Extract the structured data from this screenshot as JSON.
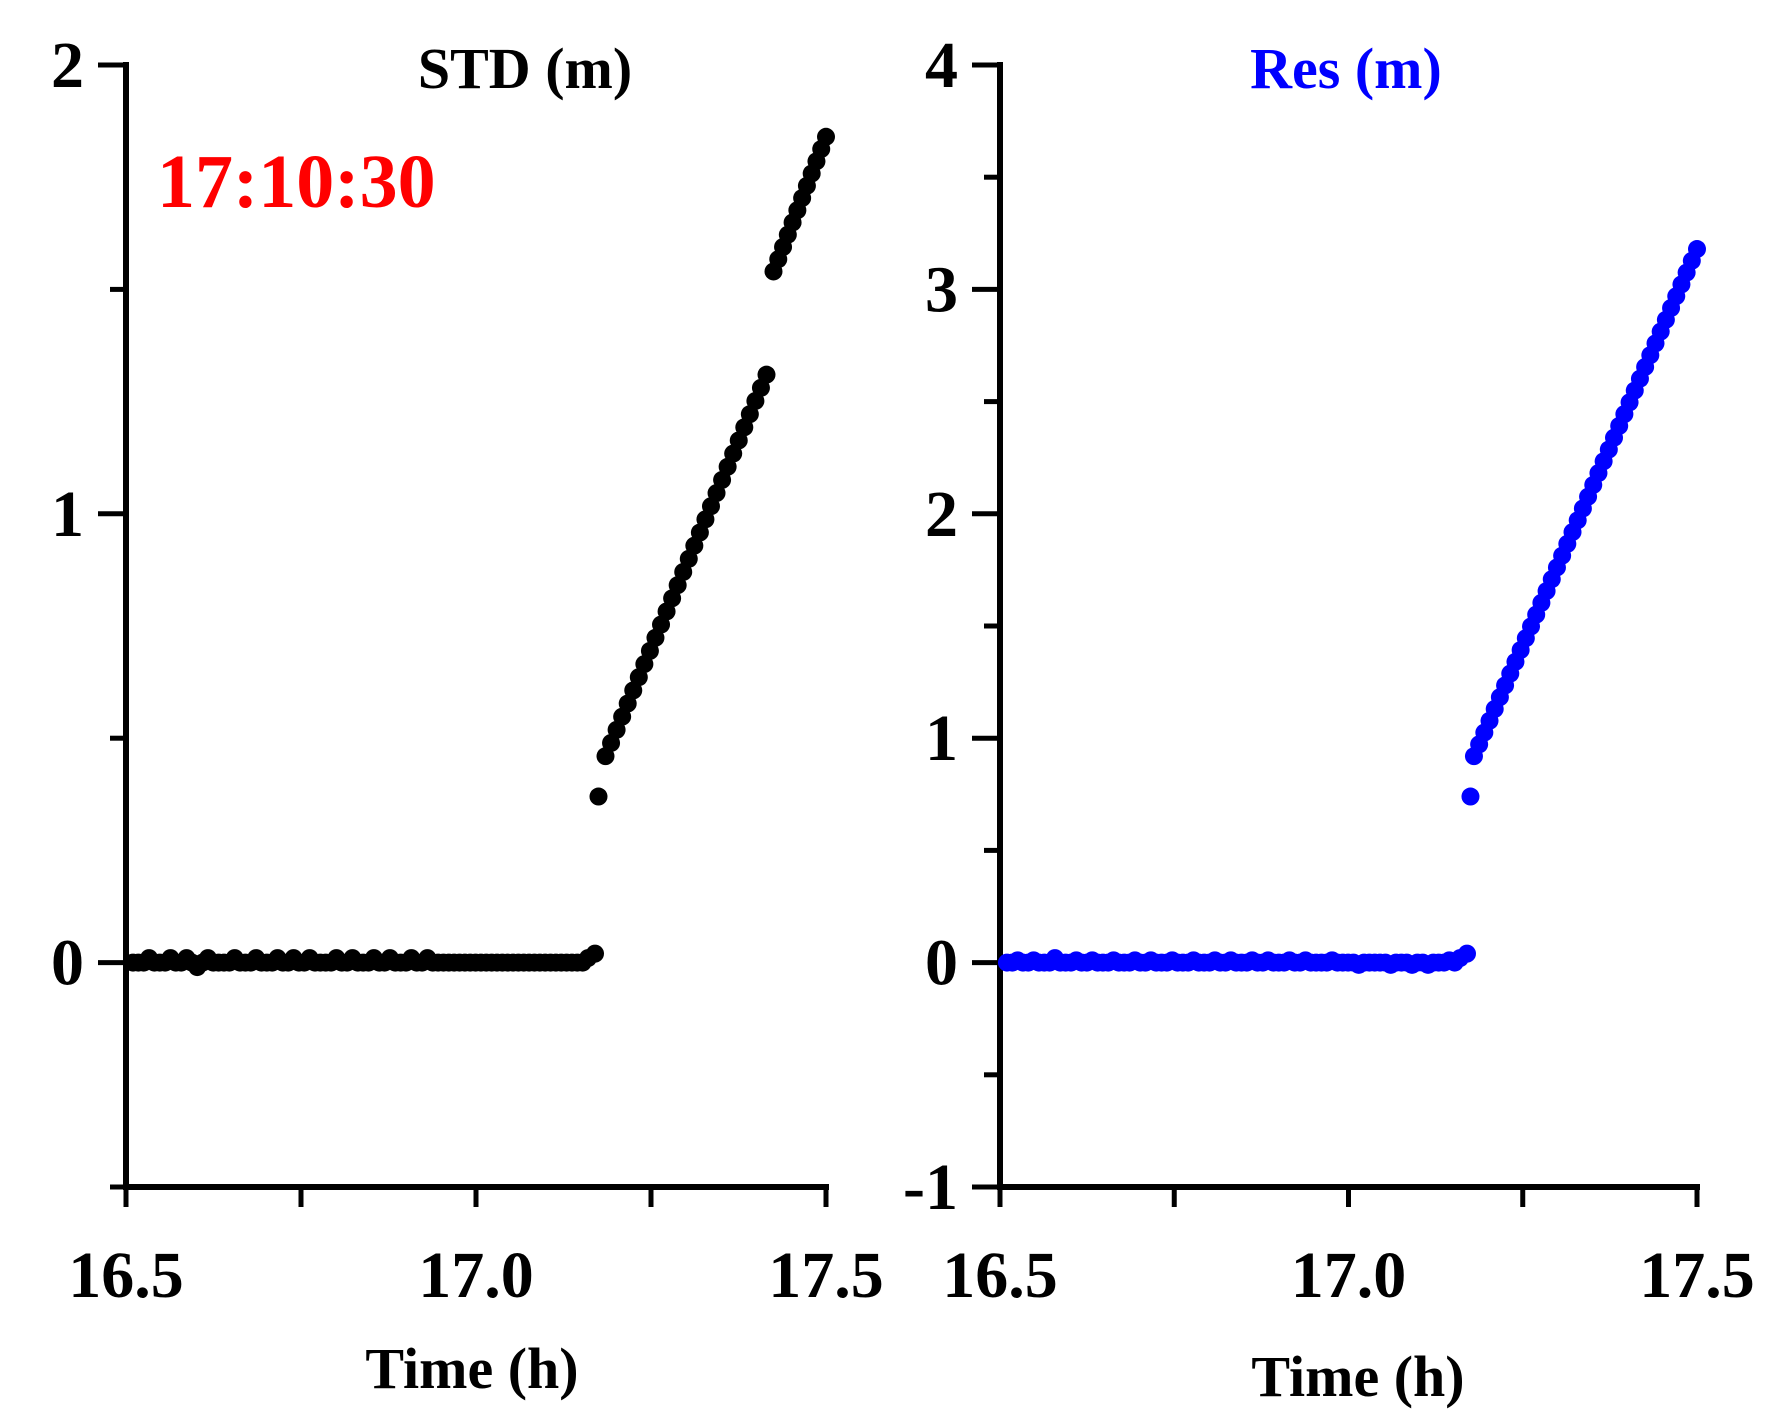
{
  "annotation": {
    "text": "17:10:30",
    "color": "#ff0000"
  },
  "chart_data": [
    {
      "type": "scatter",
      "title": "STD (m)",
      "title_color": "#000000",
      "marker_color": "#000000",
      "xlabel": "Time (h)",
      "ylabel": "",
      "xlim": [
        16.5,
        17.5
      ],
      "ylim": [
        -0.5,
        2.0
      ],
      "xticks": [
        16.5,
        17.0,
        17.5
      ],
      "xtick_labels": [
        "16.5",
        "17.0",
        "17.5"
      ],
      "yticks": [
        0,
        1,
        2
      ],
      "ytick_labels": [
        "0",
        "1",
        "2"
      ],
      "y_minor_step": 0.5,
      "x_minor_step": 0.25,
      "series": [
        {
          "name": "baseline",
          "x_start": 16.51,
          "x_end": 17.16,
          "count": 86,
          "values": [
            0.0,
            0.0,
            0.0,
            0.01,
            0.0,
            0.0,
            0.0,
            0.01,
            0.0,
            0.0,
            0.01,
            0.0,
            -0.01,
            0.0,
            0.01,
            0.0,
            0.0,
            0.0,
            0.0,
            0.01,
            0.0,
            0.0,
            0.0,
            0.01,
            0.0,
            0.0,
            0.0,
            0.01,
            0.0,
            0.0,
            0.01,
            0.0,
            0.0,
            0.01,
            0.0,
            0.0,
            0.0,
            0.0,
            0.01,
            0.0,
            0.0,
            0.01,
            0.0,
            0.0,
            0.0,
            0.01,
            0.0,
            0.0,
            0.01,
            0.0,
            0.0,
            0.0,
            0.01,
            0.0,
            0.0,
            0.01,
            0.0,
            0.0,
            0.0,
            0.0,
            0.0,
            0.0,
            0.0,
            0.0,
            0.0,
            0.0,
            0.0,
            0.0,
            0.0,
            0.0,
            0.0,
            0.0,
            0.0,
            0.0,
            0.0,
            0.0,
            0.0,
            0.0,
            0.0,
            0.0,
            0.0,
            0.0,
            0.0,
            0.0,
            0.0,
            0.01
          ]
        },
        {
          "name": "jump",
          "x": [
            17.17,
            17.175
          ],
          "y": [
            0.02,
            0.37
          ]
        },
        {
          "name": "rise-1",
          "x_start": 17.185,
          "x_end": 17.415,
          "count": 30,
          "y_start": 0.46,
          "y_end": 1.31
        },
        {
          "name": "rise-2",
          "x_start": 17.425,
          "x_end": 17.5,
          "count": 12,
          "y_start": 1.54,
          "y_end": 1.84
        }
      ]
    },
    {
      "type": "scatter",
      "title": "Res (m)",
      "title_color": "#0000ff",
      "marker_color": "#0000ff",
      "xlabel": "Time (h)",
      "ylabel": "",
      "xlim": [
        16.5,
        17.5
      ],
      "ylim": [
        -1,
        4
      ],
      "xticks": [
        16.5,
        17.0,
        17.5
      ],
      "xtick_labels": [
        "16.5",
        "17.0",
        "17.5"
      ],
      "yticks": [
        -1,
        0,
        1,
        2,
        3,
        4
      ],
      "ytick_labels": [
        "-1",
        "0",
        "1",
        "2",
        "3",
        "4"
      ],
      "y_minor_step": 0.5,
      "x_minor_step": 0.25,
      "series": [
        {
          "name": "baseline",
          "x_start": 16.51,
          "x_end": 17.16,
          "count": 86,
          "values": [
            0.0,
            0.0,
            0.01,
            0.0,
            0.0,
            0.01,
            0.0,
            0.0,
            0.0,
            0.02,
            0.0,
            0.0,
            0.0,
            0.01,
            0.0,
            0.0,
            0.01,
            0.0,
            0.0,
            0.0,
            0.01,
            0.0,
            0.0,
            0.0,
            0.01,
            0.0,
            0.0,
            0.01,
            0.0,
            0.0,
            0.0,
            0.01,
            0.0,
            0.0,
            0.0,
            0.01,
            0.0,
            0.0,
            0.0,
            0.01,
            0.0,
            0.0,
            0.01,
            0.0,
            0.0,
            0.0,
            0.01,
            0.0,
            0.0,
            0.01,
            0.0,
            0.0,
            0.0,
            0.01,
            0.0,
            0.0,
            0.01,
            0.0,
            0.0,
            0.0,
            0.0,
            0.01,
            0.0,
            0.0,
            0.0,
            0.0,
            -0.01,
            0.0,
            0.0,
            0.0,
            0.0,
            0.0,
            -0.01,
            0.0,
            0.0,
            0.0,
            -0.01,
            0.0,
            0.0,
            -0.01,
            0.0,
            0.0,
            0.0,
            0.01,
            0.0,
            0.02
          ]
        },
        {
          "name": "jump",
          "x": [
            17.17,
            17.175
          ],
          "y": [
            0.04,
            0.74
          ]
        },
        {
          "name": "rise",
          "x_start": 17.18,
          "x_end": 17.5,
          "count": 44,
          "y_start": 0.92,
          "y_end": 3.18
        }
      ]
    }
  ]
}
